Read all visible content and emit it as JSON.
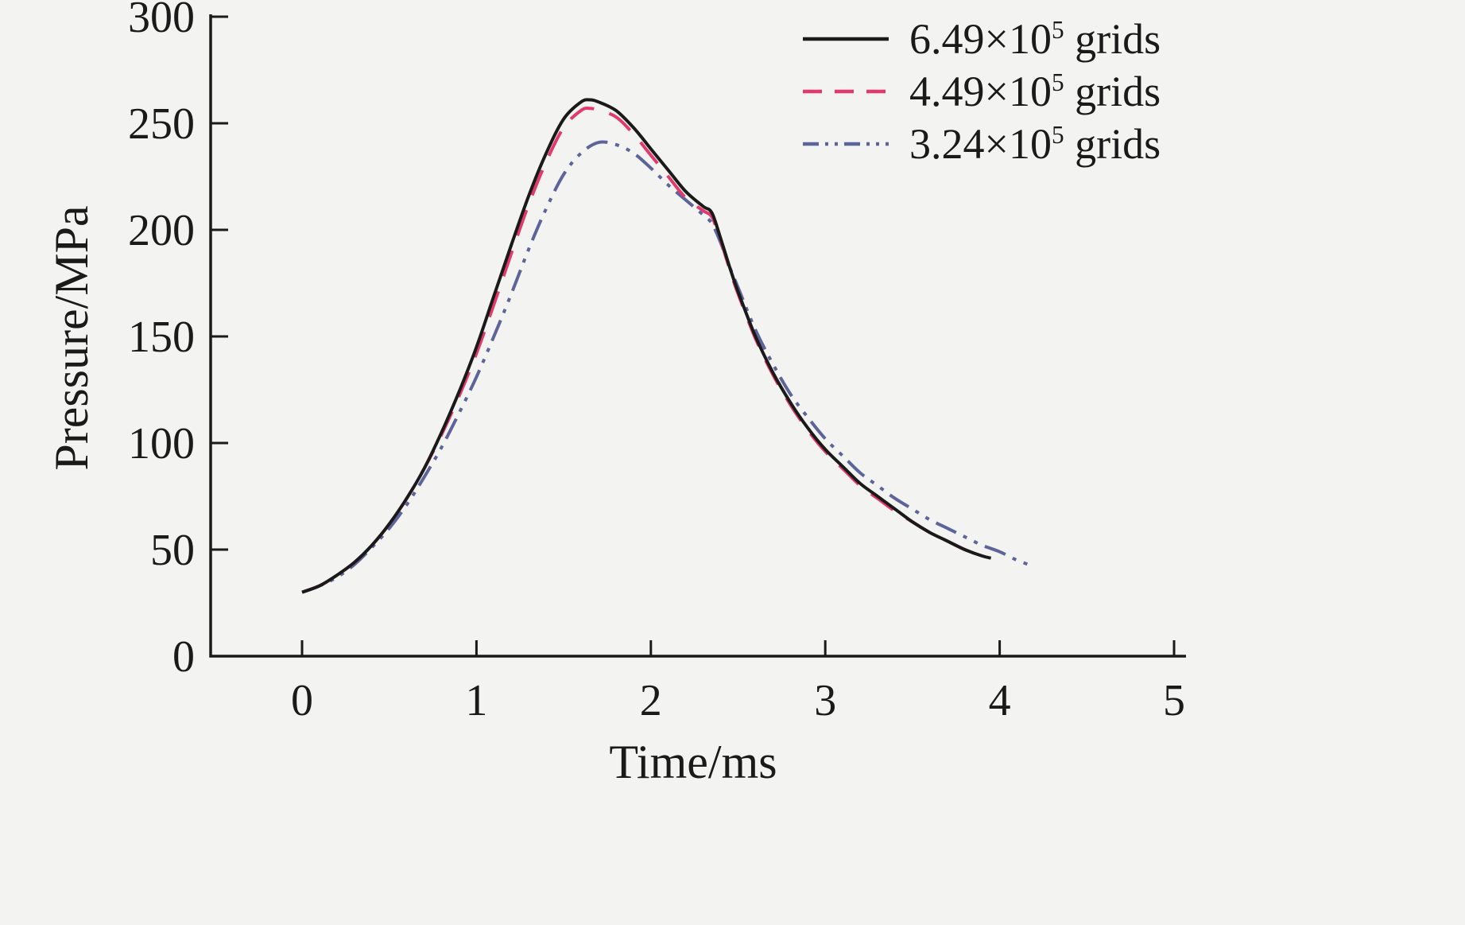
{
  "page": {
    "background": "#f3f3f2",
    "axis_color": "#1a1a1a"
  },
  "chart_data": {
    "type": "line",
    "title": "",
    "xlabel": "Time/ms",
    "ylabel": "Pressure/MPa",
    "xlim": [
      0,
      5
    ],
    "ylim": [
      0,
      300
    ],
    "x_ticks": [
      0,
      1,
      2,
      3,
      4,
      5
    ],
    "y_ticks": [
      0,
      50,
      100,
      150,
      200,
      250,
      300
    ],
    "grid": false,
    "legend_position": "top-right",
    "series": [
      {
        "name": "3.24×10^5 grids",
        "legend": {
          "prefix": "3.24×10",
          "sup": "5",
          "suffix": " grids"
        },
        "color": "#5d649a",
        "dasharray": "28 10 5 10 5 10",
        "legend_dasharray": "20 8 4 8 4 8",
        "points": [
          [
            0,
            30
          ],
          [
            0.1,
            33
          ],
          [
            0.2,
            37
          ],
          [
            0.3,
            43
          ],
          [
            0.4,
            51
          ],
          [
            0.5,
            60
          ],
          [
            0.6,
            71
          ],
          [
            0.7,
            84
          ],
          [
            0.8,
            98
          ],
          [
            0.9,
            114
          ],
          [
            1,
            131
          ],
          [
            1.1,
            150
          ],
          [
            1.2,
            170
          ],
          [
            1.3,
            191
          ],
          [
            1.4,
            210
          ],
          [
            1.5,
            226
          ],
          [
            1.6,
            236
          ],
          [
            1.7,
            241
          ],
          [
            1.8,
            240
          ],
          [
            1.9,
            236
          ],
          [
            2,
            229
          ],
          [
            2.1,
            221
          ],
          [
            2.2,
            214
          ],
          [
            2.3,
            207
          ],
          [
            2.35,
            203
          ],
          [
            2.4,
            194
          ],
          [
            2.45,
            183
          ],
          [
            2.5,
            173
          ],
          [
            2.6,
            153
          ],
          [
            2.7,
            137
          ],
          [
            2.8,
            123
          ],
          [
            2.9,
            112
          ],
          [
            3,
            102
          ],
          [
            3.1,
            94
          ],
          [
            3.2,
            86
          ],
          [
            3.3,
            80
          ],
          [
            3.4,
            74
          ],
          [
            3.5,
            69
          ],
          [
            3.6,
            64
          ],
          [
            3.7,
            60
          ],
          [
            3.8,
            56
          ],
          [
            3.9,
            52
          ],
          [
            4,
            49
          ],
          [
            4.1,
            45
          ],
          [
            4.2,
            42
          ]
        ]
      },
      {
        "name": "4.49×10^5 grids",
        "legend": {
          "prefix": "4.49×10",
          "sup": "5",
          "suffix": " grids"
        },
        "color": "#e23a6c",
        "dasharray": "34 20",
        "legend_dasharray": "24 16",
        "points": [
          [
            0,
            30
          ],
          [
            0.1,
            33
          ],
          [
            0.2,
            38
          ],
          [
            0.3,
            44
          ],
          [
            0.4,
            52
          ],
          [
            0.5,
            62
          ],
          [
            0.6,
            74
          ],
          [
            0.7,
            88
          ],
          [
            0.8,
            104
          ],
          [
            0.9,
            122
          ],
          [
            1,
            142
          ],
          [
            1.1,
            165
          ],
          [
            1.2,
            189
          ],
          [
            1.3,
            212
          ],
          [
            1.4,
            232
          ],
          [
            1.5,
            248
          ],
          [
            1.6,
            256
          ],
          [
            1.65,
            257
          ],
          [
            1.7,
            256
          ],
          [
            1.8,
            253
          ],
          [
            1.9,
            245
          ],
          [
            2,
            235
          ],
          [
            2.1,
            225
          ],
          [
            2.2,
            215
          ],
          [
            2.3,
            209
          ],
          [
            2.35,
            206
          ],
          [
            2.4,
            195
          ],
          [
            2.45,
            182
          ],
          [
            2.5,
            170
          ],
          [
            2.6,
            149
          ],
          [
            2.7,
            132
          ],
          [
            2.8,
            118
          ],
          [
            2.9,
            106
          ],
          [
            3,
            96
          ],
          [
            3.1,
            88
          ],
          [
            3.2,
            80
          ],
          [
            3.3,
            74
          ],
          [
            3.4,
            68
          ],
          [
            3.5,
            63
          ],
          [
            3.6,
            58
          ],
          [
            3.7,
            54
          ],
          [
            3.8,
            50
          ],
          [
            3.9,
            47
          ]
        ]
      },
      {
        "name": "6.49×10^5 grids",
        "legend": {
          "prefix": "6.49×10",
          "sup": "5",
          "suffix": " grids"
        },
        "color": "#1a1a1a",
        "dasharray": "",
        "legend_dasharray": "",
        "points": [
          [
            0,
            30
          ],
          [
            0.1,
            33
          ],
          [
            0.2,
            38
          ],
          [
            0.3,
            44
          ],
          [
            0.4,
            52
          ],
          [
            0.5,
            62
          ],
          [
            0.6,
            74
          ],
          [
            0.7,
            88
          ],
          [
            0.8,
            105
          ],
          [
            0.9,
            124
          ],
          [
            1,
            145
          ],
          [
            1.1,
            169
          ],
          [
            1.2,
            193
          ],
          [
            1.3,
            216
          ],
          [
            1.4,
            236
          ],
          [
            1.5,
            252
          ],
          [
            1.6,
            260
          ],
          [
            1.65,
            261
          ],
          [
            1.7,
            260
          ],
          [
            1.8,
            256
          ],
          [
            1.9,
            248
          ],
          [
            2,
            238
          ],
          [
            2.1,
            228
          ],
          [
            2.2,
            218
          ],
          [
            2.3,
            211
          ],
          [
            2.35,
            208
          ],
          [
            2.4,
            196
          ],
          [
            2.45,
            183
          ],
          [
            2.5,
            171
          ],
          [
            2.6,
            150
          ],
          [
            2.7,
            133
          ],
          [
            2.8,
            119
          ],
          [
            2.9,
            107
          ],
          [
            3,
            97
          ],
          [
            3.1,
            89
          ],
          [
            3.2,
            81
          ],
          [
            3.3,
            75
          ],
          [
            3.4,
            69
          ],
          [
            3.5,
            63
          ],
          [
            3.6,
            58
          ],
          [
            3.7,
            54
          ],
          [
            3.8,
            50
          ],
          [
            3.9,
            47
          ],
          [
            3.95,
            46
          ]
        ]
      }
    ],
    "legend_order": [
      "6.49×10^5 grids",
      "4.49×10^5 grids",
      "3.24×10^5 grids"
    ]
  }
}
